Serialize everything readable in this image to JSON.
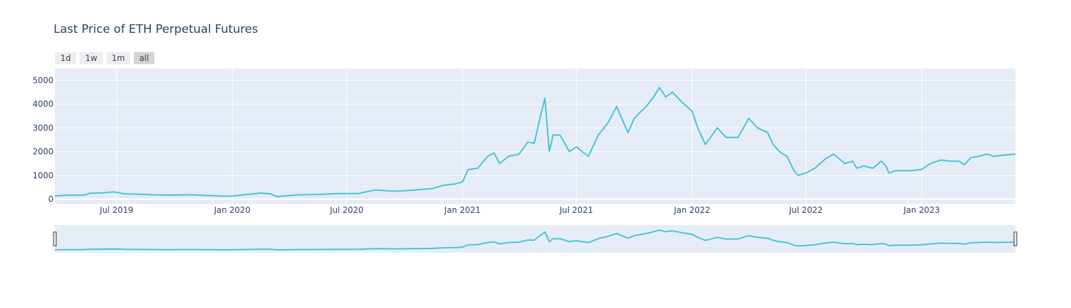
{
  "chart_data": {
    "type": "line",
    "title": "Last Price of ETH Perpetual Futures",
    "range_buttons": [
      {
        "label": "1d",
        "active": false
      },
      {
        "label": "1w",
        "active": false
      },
      {
        "label": "1m",
        "active": false
      },
      {
        "label": "all",
        "active": true
      }
    ],
    "xlim": [
      "2019-03-25",
      "2023-05-30"
    ],
    "ylim": [
      -200,
      5500
    ],
    "x_ticks": [
      {
        "date": "2019-07-01",
        "label": "Jul 2019"
      },
      {
        "date": "2020-01-01",
        "label": "Jan 2020"
      },
      {
        "date": "2020-07-01",
        "label": "Jul 2020"
      },
      {
        "date": "2021-01-01",
        "label": "Jan 2021"
      },
      {
        "date": "2021-07-01",
        "label": "Jul 2021"
      },
      {
        "date": "2022-01-01",
        "label": "Jan 2022"
      },
      {
        "date": "2022-07-01",
        "label": "Jul 2022"
      },
      {
        "date": "2023-01-01",
        "label": "Jan 2023"
      }
    ],
    "y_ticks": [
      0,
      1000,
      2000,
      3000,
      4000,
      5000
    ],
    "grid": true,
    "rangeslider": true,
    "colors": {
      "line": "#45c4d2",
      "plot_bg": "#e5ecf6",
      "grid": "#ffffff"
    },
    "series": [
      {
        "x": [
          "2019-03-25",
          "2019-04-15",
          "2019-05-10",
          "2019-05-20",
          "2019-06-10",
          "2019-06-26",
          "2019-07-15",
          "2019-08-01",
          "2019-09-01",
          "2019-09-25",
          "2019-10-15",
          "2019-11-01",
          "2019-12-15",
          "2020-01-01",
          "2020-02-15",
          "2020-03-01",
          "2020-03-12",
          "2020-03-20",
          "2020-04-15",
          "2020-05-15",
          "2020-06-15",
          "2020-07-20",
          "2020-08-15",
          "2020-09-05",
          "2020-09-20",
          "2020-10-15",
          "2020-11-15",
          "2020-12-01",
          "2020-12-20",
          "2021-01-01",
          "2021-01-10",
          "2021-01-25",
          "2021-02-10",
          "2021-02-20",
          "2021-03-01",
          "2021-03-15",
          "2021-04-01",
          "2021-04-15",
          "2021-04-25",
          "2021-05-05",
          "2021-05-12",
          "2021-05-19",
          "2021-05-25",
          "2021-06-05",
          "2021-06-20",
          "2021-07-01",
          "2021-07-20",
          "2021-08-05",
          "2021-08-20",
          "2021-09-03",
          "2021-09-21",
          "2021-10-01",
          "2021-10-20",
          "2021-11-01",
          "2021-11-10",
          "2021-11-20",
          "2021-12-01",
          "2021-12-15",
          "2022-01-01",
          "2022-01-10",
          "2022-01-22",
          "2022-02-10",
          "2022-02-24",
          "2022-03-15",
          "2022-04-01",
          "2022-04-15",
          "2022-05-01",
          "2022-05-10",
          "2022-05-20",
          "2022-06-01",
          "2022-06-12",
          "2022-06-18",
          "2022-07-01",
          "2022-07-15",
          "2022-08-01",
          "2022-08-14",
          "2022-09-01",
          "2022-09-13",
          "2022-09-20",
          "2022-10-01",
          "2022-10-15",
          "2022-10-29",
          "2022-11-05",
          "2022-11-10",
          "2022-11-20",
          "2022-12-15",
          "2023-01-01",
          "2023-01-15",
          "2023-02-01",
          "2023-02-15",
          "2023-03-01",
          "2023-03-10",
          "2023-03-20",
          "2023-04-01",
          "2023-04-15",
          "2023-04-25",
          "2023-05-10",
          "2023-05-30"
        ],
        "y": [
          140,
          170,
          170,
          250,
          270,
          310,
          220,
          215,
          180,
          170,
          180,
          180,
          130,
          130,
          260,
          230,
          110,
          130,
          180,
          200,
          235,
          240,
          390,
          350,
          340,
          380,
          450,
          580,
          640,
          730,
          1250,
          1300,
          1800,
          1950,
          1500,
          1800,
          1900,
          2400,
          2350,
          3500,
          4250,
          2000,
          2700,
          2700,
          2000,
          2200,
          1800,
          2700,
          3200,
          3900,
          2800,
          3400,
          3900,
          4300,
          4700,
          4300,
          4500,
          4100,
          3700,
          3000,
          2300,
          3000,
          2600,
          2600,
          3400,
          3000,
          2800,
          2300,
          2000,
          1800,
          1200,
          1000,
          1100,
          1300,
          1700,
          1900,
          1500,
          1600,
          1300,
          1400,
          1300,
          1600,
          1400,
          1100,
          1200,
          1200,
          1250,
          1500,
          1650,
          1600,
          1600,
          1450,
          1750,
          1800,
          1900,
          1800,
          1850,
          1900
        ]
      }
    ]
  }
}
